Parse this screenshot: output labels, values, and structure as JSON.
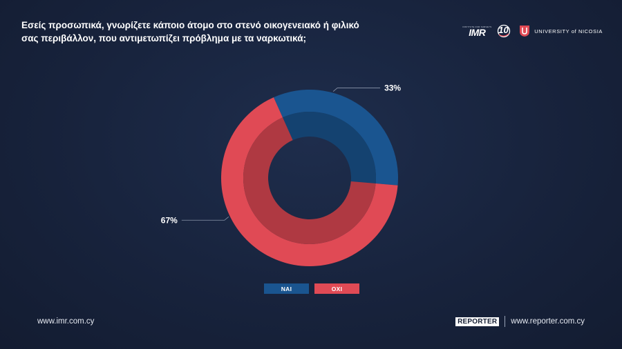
{
  "header": {
    "question_line1": "Εσείς προσωπικά, γνωρίζετε κάποιο άτομο στο στενό οικογενειακό ή φιλικό",
    "question_line2": "σας περιβάλλον, που αντιμετωπίζει πρόβλημα με τα ναρκωτικά;"
  },
  "logos": {
    "imr_small": "INSTITUTE FOR SURVEYS",
    "imr_main": "IMR",
    "anniversary": "10",
    "university": "UNIVERSITY of NICOSIA"
  },
  "chart_data": {
    "type": "pie",
    "variant": "donut",
    "categories": [
      "ΝΑΙ",
      "ΟΧΙ"
    ],
    "values": [
      33,
      67
    ],
    "labels": [
      "33%",
      "67%"
    ],
    "colors": [
      "#1a5590",
      "#e04a55"
    ],
    "legend": {
      "placement": "bottom",
      "entries": [
        "ΝΑΙ",
        "ΟΧΙ"
      ]
    }
  },
  "legend": {
    "yes_label": "ΝΑΙ",
    "no_label": "ΟΧΙ"
  },
  "footer": {
    "left_site": "www.imr.com.cy",
    "reporter_logo": "REPORTER",
    "right_site": "www.reporter.com.cy"
  }
}
